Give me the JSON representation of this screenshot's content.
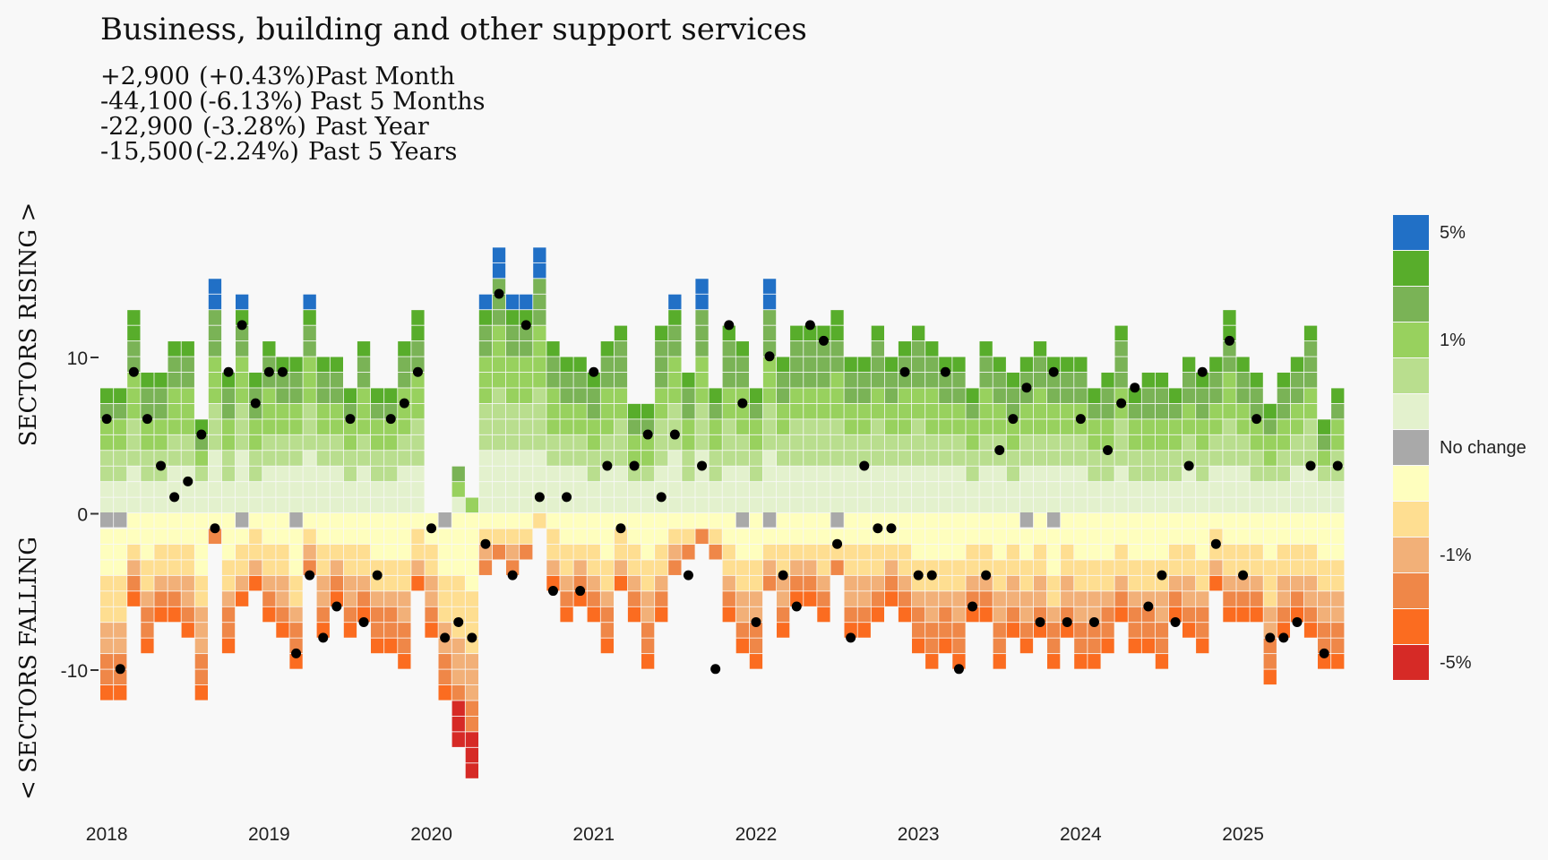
{
  "chart_data": {
    "type": "heatmap",
    "title": "Business, building and other support services",
    "subtitle_lines": [
      {
        "change": "+2,900",
        "pct": "(+0.43%)",
        "period": "Past Month"
      },
      {
        "change": "-44,100",
        "pct": "(-6.13%)",
        "period": "Past 5 Months"
      },
      {
        "change": "-22,900",
        "pct": "(-3.28%)",
        "period": "Past Year"
      },
      {
        "change": "-15,500",
        "pct": "(-2.24%)",
        "period": "Past 5 Years"
      }
    ],
    "ylabel_top": "SECTORS RISING >",
    "ylabel_bottom": "< SECTORS FALLING",
    "y_ticks": [
      10,
      0,
      -10
    ],
    "y_tick_labels": [
      "10",
      "0",
      "-10"
    ],
    "x_tick_labels": [
      "2018",
      "2019",
      "2020",
      "2021",
      "2022",
      "2023",
      "2024",
      "2025"
    ],
    "x_start": "2018-01",
    "legend_labels": [
      "5%",
      "",
      "1%",
      "",
      "",
      "No change",
      "",
      "",
      "-1%",
      "",
      "-5%"
    ],
    "colors": {
      "rise": [
        "#e3f1cd",
        "#b9de8e",
        "#98d15e",
        "#7ab356",
        "#58ad2b",
        "#2170c6"
      ],
      "fall": [
        "#fefebe",
        "#fede91",
        "#f2b078",
        "#ef8748",
        "#fb6c20",
        "#d62a26"
      ],
      "none": "#a9a9a9",
      "dot": "#000000"
    },
    "series": [
      {
        "m": "2018-01",
        "up": 8,
        "down": -11,
        "nc": 1,
        "net": 6
      },
      {
        "m": "2018-02",
        "up": 8,
        "down": -11,
        "nc": 1,
        "net": -10
      },
      {
        "m": "2018-03",
        "up": 13,
        "down": -6,
        "nc": 0,
        "net": 9
      },
      {
        "m": "2018-04",
        "up": 9,
        "down": -9,
        "nc": 0,
        "net": 6
      },
      {
        "m": "2018-05",
        "up": 9,
        "down": -7,
        "nc": 0,
        "net": 3
      },
      {
        "m": "2018-06",
        "up": 11,
        "down": -7,
        "nc": 0,
        "net": 1
      },
      {
        "m": "2018-07",
        "up": 11,
        "down": -8,
        "nc": 0,
        "net": 2
      },
      {
        "m": "2018-08",
        "up": 6,
        "down": -12,
        "nc": 0,
        "net": 5
      },
      {
        "m": "2018-09",
        "up": 15,
        "down": -2,
        "nc": 0,
        "net": -1
      },
      {
        "m": "2018-10",
        "up": 9,
        "down": -9,
        "nc": 0,
        "net": 9
      },
      {
        "m": "2018-11",
        "up": 14,
        "down": -5,
        "nc": 1,
        "net": 12
      },
      {
        "m": "2018-12",
        "up": 9,
        "down": -5,
        "nc": 0,
        "net": 7
      },
      {
        "m": "2019-01",
        "up": 11,
        "down": -7,
        "nc": 0,
        "net": 9
      },
      {
        "m": "2019-02",
        "up": 10,
        "down": -8,
        "nc": 0,
        "net": 9
      },
      {
        "m": "2019-03",
        "up": 10,
        "down": -9,
        "nc": 1,
        "net": -9
      },
      {
        "m": "2019-04",
        "up": 14,
        "down": -4,
        "nc": 0,
        "net": -4
      },
      {
        "m": "2019-05",
        "up": 10,
        "down": -8,
        "nc": 0,
        "net": -8
      },
      {
        "m": "2019-06",
        "up": 10,
        "down": -6,
        "nc": 0,
        "net": -6
      },
      {
        "m": "2019-07",
        "up": 8,
        "down": -8,
        "nc": 0,
        "net": 6
      },
      {
        "m": "2019-08",
        "up": 11,
        "down": -7,
        "nc": 0,
        "net": -7
      },
      {
        "m": "2019-09",
        "up": 8,
        "down": -9,
        "nc": 0,
        "net": -4
      },
      {
        "m": "2019-10",
        "up": 8,
        "down": -9,
        "nc": 0,
        "net": 6
      },
      {
        "m": "2019-11",
        "up": 11,
        "down": -10,
        "nc": 0,
        "net": 7
      },
      {
        "m": "2019-12",
        "up": 13,
        "down": -5,
        "nc": 0,
        "net": 9
      },
      {
        "m": "2020-01",
        "up": 0,
        "down": -8,
        "nc": 0,
        "net": -1
      },
      {
        "m": "2020-02",
        "up": 0,
        "down": -11,
        "nc": 1,
        "net": -8
      },
      {
        "m": "2020-03",
        "up": 3,
        "down": -15,
        "nc": 0,
        "net": -7
      },
      {
        "m": "2020-04",
        "up": 1,
        "down": -17,
        "nc": 0,
        "net": -8
      },
      {
        "m": "2020-05",
        "up": 14,
        "down": -4,
        "nc": 0,
        "net": -2
      },
      {
        "m": "2020-06",
        "up": 17,
        "down": -3,
        "nc": 0,
        "net": 14
      },
      {
        "m": "2020-07",
        "up": 14,
        "down": -4,
        "nc": 0,
        "net": -4
      },
      {
        "m": "2020-08",
        "up": 14,
        "down": -3,
        "nc": 0,
        "net": 12
      },
      {
        "m": "2020-09",
        "up": 17,
        "down": -1,
        "nc": 0,
        "net": 1
      },
      {
        "m": "2020-10",
        "up": 11,
        "down": -5,
        "nc": 0,
        "net": -5
      },
      {
        "m": "2020-11",
        "up": 10,
        "down": -7,
        "nc": 0,
        "net": 1
      },
      {
        "m": "2020-12",
        "up": 10,
        "down": -6,
        "nc": 0,
        "net": -5
      },
      {
        "m": "2021-01",
        "up": 9,
        "down": -7,
        "nc": 0,
        "net": 9
      },
      {
        "m": "2021-02",
        "up": 11,
        "down": -9,
        "nc": 0,
        "net": 3
      },
      {
        "m": "2021-03",
        "up": 12,
        "down": -5,
        "nc": 0,
        "net": -1
      },
      {
        "m": "2021-04",
        "up": 7,
        "down": -7,
        "nc": 0,
        "net": 3
      },
      {
        "m": "2021-05",
        "up": 7,
        "down": -10,
        "nc": 0,
        "net": 5
      },
      {
        "m": "2021-06",
        "up": 12,
        "down": -7,
        "nc": 0,
        "net": 1
      },
      {
        "m": "2021-07",
        "up": 14,
        "down": -4,
        "nc": 0,
        "net": 5
      },
      {
        "m": "2021-08",
        "up": 9,
        "down": -3,
        "nc": 0,
        "net": -4
      },
      {
        "m": "2021-09",
        "up": 15,
        "down": -2,
        "nc": 0,
        "net": 3
      },
      {
        "m": "2021-10",
        "up": 8,
        "down": -3,
        "nc": 0,
        "net": -10
      },
      {
        "m": "2021-11",
        "up": 12,
        "down": -7,
        "nc": 0,
        "net": 12
      },
      {
        "m": "2021-12",
        "up": 11,
        "down": -8,
        "nc": 1,
        "net": 7
      },
      {
        "m": "2022-01",
        "up": 8,
        "down": -10,
        "nc": 0,
        "net": -7
      },
      {
        "m": "2022-02",
        "up": 15,
        "down": -4,
        "nc": 1,
        "net": 10
      },
      {
        "m": "2022-03",
        "up": 10,
        "down": -8,
        "nc": 0,
        "net": -4
      },
      {
        "m": "2022-04",
        "up": 12,
        "down": -6,
        "nc": 0,
        "net": -6
      },
      {
        "m": "2022-05",
        "up": 12,
        "down": -6,
        "nc": 0,
        "net": 12
      },
      {
        "m": "2022-06",
        "up": 12,
        "down": -7,
        "nc": 0,
        "net": 11
      },
      {
        "m": "2022-07",
        "up": 13,
        "down": -3,
        "nc": 1,
        "net": -2
      },
      {
        "m": "2022-08",
        "up": 10,
        "down": -8,
        "nc": 0,
        "net": -8
      },
      {
        "m": "2022-09",
        "up": 10,
        "down": -8,
        "nc": 0,
        "net": 3
      },
      {
        "m": "2022-10",
        "up": 12,
        "down": -7,
        "nc": 0,
        "net": -1
      },
      {
        "m": "2022-11",
        "up": 10,
        "down": -6,
        "nc": 0,
        "net": -1
      },
      {
        "m": "2022-12",
        "up": 11,
        "down": -7,
        "nc": 0,
        "net": 9
      },
      {
        "m": "2023-01",
        "up": 12,
        "down": -9,
        "nc": 0,
        "net": -4
      },
      {
        "m": "2023-02",
        "up": 11,
        "down": -10,
        "nc": 0,
        "net": -4
      },
      {
        "m": "2023-03",
        "up": 10,
        "down": -9,
        "nc": 0,
        "net": 9
      },
      {
        "m": "2023-04",
        "up": 10,
        "down": -10,
        "nc": 0,
        "net": -10
      },
      {
        "m": "2023-05",
        "up": 8,
        "down": -7,
        "nc": 0,
        "net": -6
      },
      {
        "m": "2023-06",
        "up": 11,
        "down": -7,
        "nc": 0,
        "net": -4
      },
      {
        "m": "2023-07",
        "up": 10,
        "down": -10,
        "nc": 0,
        "net": 4
      },
      {
        "m": "2023-08",
        "up": 9,
        "down": -8,
        "nc": 0,
        "net": 6
      },
      {
        "m": "2023-09",
        "up": 10,
        "down": -8,
        "nc": 1,
        "net": 8
      },
      {
        "m": "2023-10",
        "up": 11,
        "down": -8,
        "nc": 0,
        "net": -7
      },
      {
        "m": "2023-11",
        "up": 10,
        "down": -9,
        "nc": 1,
        "net": 9
      },
      {
        "m": "2023-12",
        "up": 10,
        "down": -8,
        "nc": 0,
        "net": -7
      },
      {
        "m": "2024-01",
        "up": 10,
        "down": -10,
        "nc": 0,
        "net": 6
      },
      {
        "m": "2024-02",
        "up": 8,
        "down": -10,
        "nc": 0,
        "net": -7
      },
      {
        "m": "2024-03",
        "up": 9,
        "down": -9,
        "nc": 0,
        "net": 4
      },
      {
        "m": "2024-04",
        "up": 12,
        "down": -7,
        "nc": 0,
        "net": 7
      },
      {
        "m": "2024-05",
        "up": 8,
        "down": -9,
        "nc": 0,
        "net": 8
      },
      {
        "m": "2024-06",
        "up": 9,
        "down": -9,
        "nc": 0,
        "net": -6
      },
      {
        "m": "2024-07",
        "up": 9,
        "down": -10,
        "nc": 0,
        "net": -4
      },
      {
        "m": "2024-08",
        "up": 8,
        "down": -7,
        "nc": 0,
        "net": -7
      },
      {
        "m": "2024-09",
        "up": 10,
        "down": -8,
        "nc": 0,
        "net": 3
      },
      {
        "m": "2024-10",
        "up": 9,
        "down": -9,
        "nc": 0,
        "net": 9
      },
      {
        "m": "2024-11",
        "up": 10,
        "down": -5,
        "nc": 0,
        "net": -2
      },
      {
        "m": "2024-12",
        "up": 13,
        "down": -7,
        "nc": 0,
        "net": 11
      },
      {
        "m": "2025-01",
        "up": 10,
        "down": -7,
        "nc": 0,
        "net": -4
      },
      {
        "m": "2025-02",
        "up": 9,
        "down": -7,
        "nc": 0,
        "net": 6
      },
      {
        "m": "2025-03",
        "up": 7,
        "down": -11,
        "nc": 0,
        "net": -8
      },
      {
        "m": "2025-04",
        "up": 9,
        "down": -8,
        "nc": 0,
        "net": -8
      },
      {
        "m": "2025-05",
        "up": 10,
        "down": -7,
        "nc": 0,
        "net": -7
      },
      {
        "m": "2025-06",
        "up": 12,
        "down": -8,
        "nc": 0,
        "net": 3
      },
      {
        "m": "2025-07",
        "up": 6,
        "down": -10,
        "nc": 0,
        "net": -9
      },
      {
        "m": "2025-08",
        "up": 8,
        "down": -10,
        "nc": 0,
        "net": 3
      }
    ]
  }
}
